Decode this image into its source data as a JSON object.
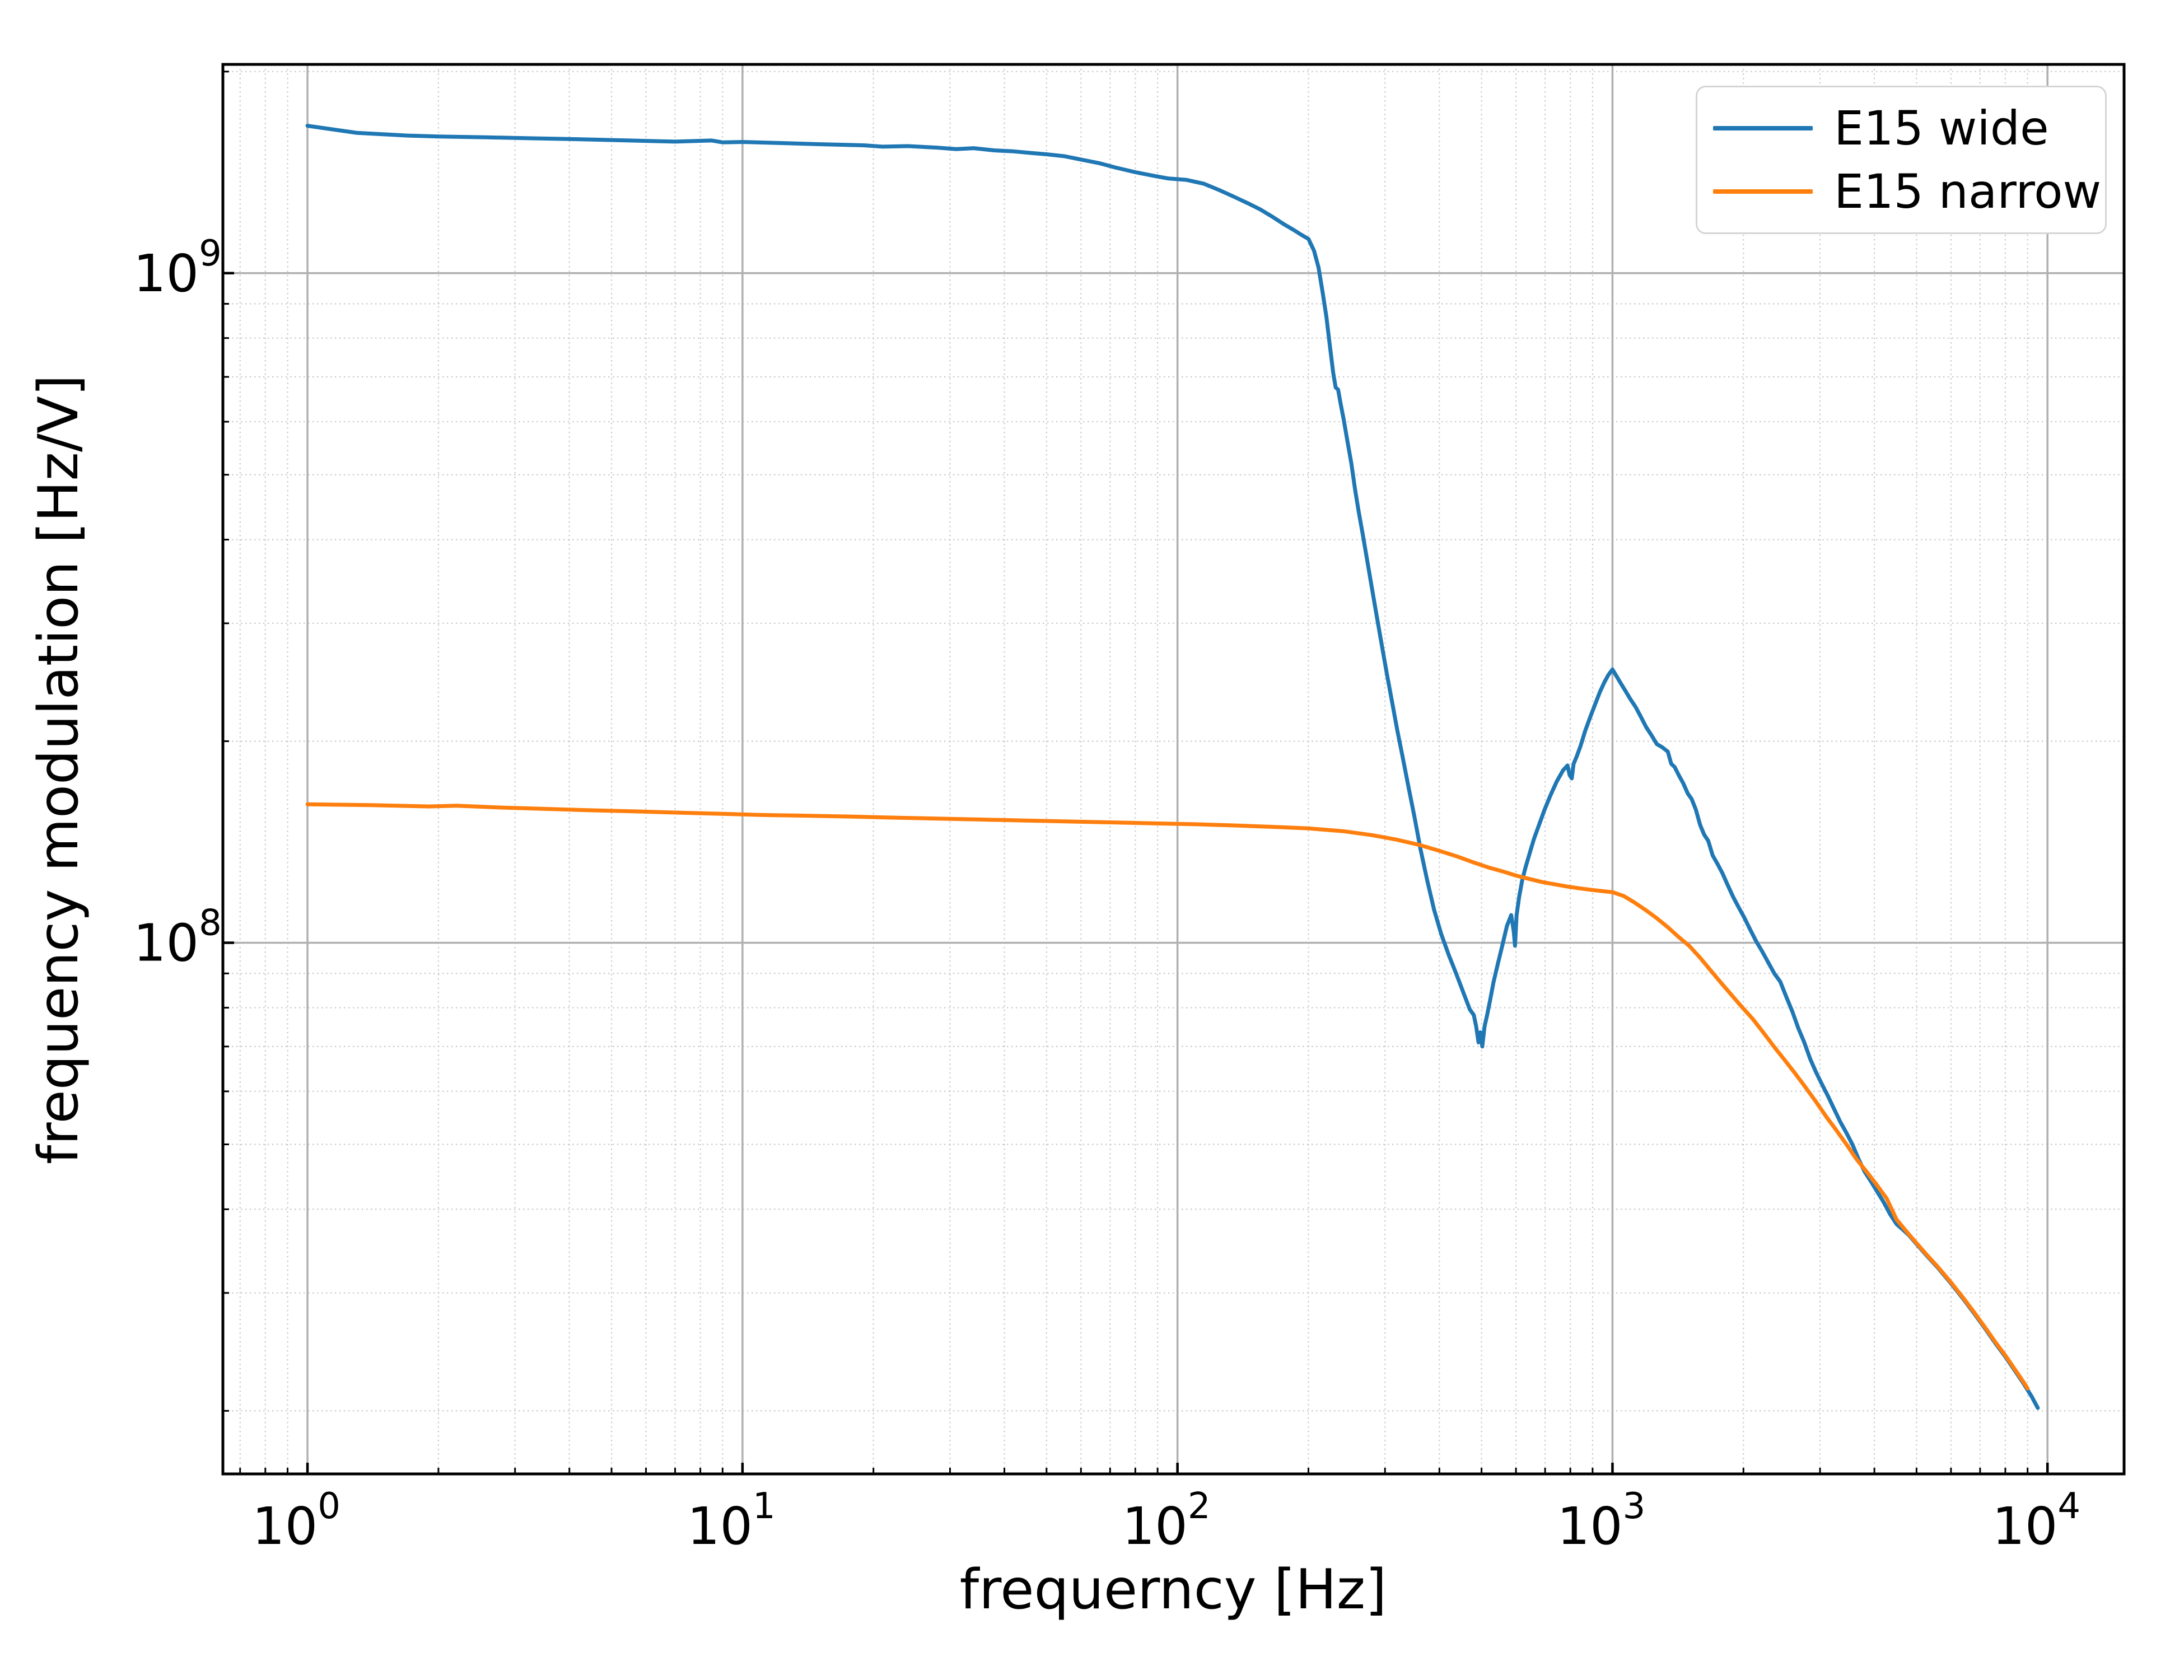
{
  "chart_data": {
    "type": "line",
    "title": "",
    "xlabel": "frequerncy [Hz]",
    "ylabel": "frequency modulation [Hz/V]",
    "x_scale": "log",
    "y_scale": "log",
    "xlim": [
      0.639,
      15000
    ],
    "ylim": [
      16100000,
      2050000000
    ],
    "x_tick_base": "10",
    "x_tick_exponents": [
      "0",
      "1",
      "2",
      "3",
      "4"
    ],
    "y_tick_base": "10",
    "y_tick_exponents": [
      "8",
      "9"
    ],
    "grid": {
      "major": "solid gray",
      "minor": "dotted light gray"
    },
    "legend_position": "upper right",
    "colors": {
      "major_grid": "#b0b0b0",
      "minor_grid": "#c9c9c9",
      "spine": "#000000"
    },
    "series": [
      {
        "name": "E15 wide",
        "color": "#1f77b4",
        "points": [
          [
            1,
            1660000000.0
          ],
          [
            1.3,
            1620000000.0
          ],
          [
            1.7,
            1605000000.0
          ],
          [
            2,
            1600000000.0
          ],
          [
            2.6,
            1595000000.0
          ],
          [
            3.3,
            1590000000.0
          ],
          [
            4.2,
            1585000000.0
          ],
          [
            5.5,
            1578000000.0
          ],
          [
            7,
            1572000000.0
          ],
          [
            8.5,
            1578000000.0
          ],
          [
            9,
            1568000000.0
          ],
          [
            10,
            1570000000.0
          ],
          [
            12,
            1565000000.0
          ],
          [
            15,
            1558000000.0
          ],
          [
            19,
            1552000000.0
          ],
          [
            21,
            1545000000.0
          ],
          [
            24,
            1548000000.0
          ],
          [
            28,
            1540000000.0
          ],
          [
            31,
            1532000000.0
          ],
          [
            34,
            1537000000.0
          ],
          [
            38,
            1525000000.0
          ],
          [
            42,
            1520000000.0
          ],
          [
            46,
            1512000000.0
          ],
          [
            50,
            1505000000.0
          ],
          [
            55,
            1495000000.0
          ],
          [
            60,
            1478000000.0
          ],
          [
            66,
            1460000000.0
          ],
          [
            72,
            1438000000.0
          ],
          [
            80,
            1415000000.0
          ],
          [
            88,
            1398000000.0
          ],
          [
            95,
            1385000000.0
          ],
          [
            105,
            1378000000.0
          ],
          [
            115,
            1360000000.0
          ],
          [
            125,
            1330000000.0
          ],
          [
            135,
            1300000000.0
          ],
          [
            145,
            1272000000.0
          ],
          [
            155,
            1245000000.0
          ],
          [
            165,
            1215000000.0
          ],
          [
            175,
            1185000000.0
          ],
          [
            185,
            1160000000.0
          ],
          [
            193,
            1140000000.0
          ],
          [
            200,
            1125000000.0
          ],
          [
            206,
            1080000000.0
          ],
          [
            211,
            1020000000.0
          ],
          [
            216,
            930000000.0
          ],
          [
            220,
            860000000.0
          ],
          [
            224,
            780000000.0
          ],
          [
            228,
            710000000.0
          ],
          [
            231,
            675000000.0
          ],
          [
            234,
            670000000.0
          ],
          [
            237,
            640000000.0
          ],
          [
            241,
            605000000.0
          ],
          [
            246,
            560000000.0
          ],
          [
            251,
            520000000.0
          ],
          [
            256,
            475000000.0
          ],
          [
            261,
            440000000.0
          ],
          [
            267,
            405000000.0
          ],
          [
            273,
            372000000.0
          ],
          [
            280,
            338000000.0
          ],
          [
            287,
            308000000.0
          ],
          [
            295,
            278000000.0
          ],
          [
            303,
            252000000.0
          ],
          [
            311,
            230000000.0
          ],
          [
            320,
            208000000.0
          ],
          [
            329,
            190000000.0
          ],
          [
            339,
            172000000.0
          ],
          [
            350,
            155000000.0
          ],
          [
            362,
            138000000.0
          ],
          [
            375,
            124000000.0
          ],
          [
            389,
            112000000.0
          ],
          [
            404,
            103000000.0
          ],
          [
            420,
            96000000.0
          ],
          [
            437,
            90000000.0
          ],
          [
            455,
            84000000.0
          ],
          [
            470,
            79500000.0
          ],
          [
            480,
            78000000.0
          ],
          [
            486,
            75000000.0
          ],
          [
            492,
            71000000.0
          ],
          [
            497,
            73500000.0
          ],
          [
            502,
            70000000.0
          ],
          [
            508,
            75000000.0
          ],
          [
            515,
            78000000.0
          ],
          [
            523,
            82000000.0
          ],
          [
            533,
            87500000.0
          ],
          [
            545,
            93000000.0
          ],
          [
            558,
            99000000.0
          ],
          [
            572,
            106000000.0
          ],
          [
            585,
            110000000.0
          ],
          [
            593,
            104000000.0
          ],
          [
            597,
            99000000.0
          ],
          [
            602,
            110000000.0
          ],
          [
            610,
            117000000.0
          ],
          [
            620,
            124000000.0
          ],
          [
            632,
            130000000.0
          ],
          [
            645,
            136000000.0
          ],
          [
            660,
            143000000.0
          ],
          [
            678,
            150000000.0
          ],
          [
            698,
            158000000.0
          ],
          [
            720,
            166000000.0
          ],
          [
            744,
            174000000.0
          ],
          [
            770,
            181000000.0
          ],
          [
            788,
            184000000.0
          ],
          [
            797,
            178000000.0
          ],
          [
            806,
            176000000.0
          ],
          [
            814,
            185000000.0
          ],
          [
            828,
            190000000.0
          ],
          [
            845,
            197000000.0
          ],
          [
            865,
            207000000.0
          ],
          [
            888,
            217000000.0
          ],
          [
            912,
            227000000.0
          ],
          [
            936,
            237000000.0
          ],
          [
            958,
            245000000.0
          ],
          [
            978,
            251000000.0
          ],
          [
            1000,
            256000000.0
          ],
          [
            1022,
            250000000.0
          ],
          [
            1045,
            244000000.0
          ],
          [
            1070,
            238000000.0
          ],
          [
            1100,
            231000000.0
          ],
          [
            1130,
            225000000.0
          ],
          [
            1160,
            218000000.0
          ],
          [
            1195,
            210000000.0
          ],
          [
            1230,
            204000000.0
          ],
          [
            1265,
            198000000.0
          ],
          [
            1300,
            196000000.0
          ],
          [
            1340,
            193000000.0
          ],
          [
            1365,
            185000000.0
          ],
          [
            1390,
            183000000.0
          ],
          [
            1420,
            178000000.0
          ],
          [
            1455,
            173000000.0
          ],
          [
            1490,
            167000000.0
          ],
          [
            1520,
            164000000.0
          ],
          [
            1555,
            158000000.0
          ],
          [
            1590,
            150000000.0
          ],
          [
            1625,
            145000000.0
          ],
          [
            1660,
            142000000.0
          ],
          [
            1700,
            135000000.0
          ],
          [
            1745,
            131000000.0
          ],
          [
            1790,
            127000000.0
          ],
          [
            1840,
            122000000.0
          ],
          [
            1895,
            117000000.0
          ],
          [
            1950,
            113000000.0
          ],
          [
            2010,
            109000000.0
          ],
          [
            2075,
            104500000.0
          ],
          [
            2140,
            100500000.0
          ],
          [
            2210,
            97000000.0
          ],
          [
            2280,
            93500000.0
          ],
          [
            2355,
            90000000.0
          ],
          [
            2430,
            87500000.0
          ],
          [
            2510,
            83000000.0
          ],
          [
            2590,
            79000000.0
          ],
          [
            2675,
            74500000.0
          ],
          [
            2760,
            71000000.0
          ],
          [
            2850,
            67000000.0
          ],
          [
            2940,
            64000000.0
          ],
          [
            3030,
            61500000.0
          ],
          [
            3130,
            59000000.0
          ],
          [
            3230,
            56500000.0
          ],
          [
            3340,
            54000000.0
          ],
          [
            3450,
            52000000.0
          ],
          [
            3560,
            50000000.0
          ],
          [
            3680,
            47500000.0
          ],
          [
            3800,
            45500000.0
          ],
          [
            3930,
            44000000.0
          ],
          [
            4060,
            42500000.0
          ],
          [
            4200,
            41000000.0
          ],
          [
            4350,
            39300000.0
          ],
          [
            4500,
            38000000.0
          ],
          [
            4650,
            37300000.0
          ],
          [
            4800,
            36600000.0
          ],
          [
            5000,
            35500000.0
          ],
          [
            5300,
            34000000.0
          ],
          [
            5600,
            32700000.0
          ],
          [
            6000,
            31000000.0
          ],
          [
            6400,
            29400000.0
          ],
          [
            6800,
            27900000.0
          ],
          [
            7200,
            26500000.0
          ],
          [
            7600,
            25200000.0
          ],
          [
            8000,
            24100000.0
          ],
          [
            8400,
            23000000.0
          ],
          [
            8800,
            22000000.0
          ],
          [
            9200,
            21000000.0
          ],
          [
            9500,
            20200000.0
          ]
        ]
      },
      {
        "name": "E15 narrow",
        "color": "#ff7f0e",
        "points": [
          [
            1,
            161000000.0
          ],
          [
            1.4,
            160500000.0
          ],
          [
            1.9,
            159800000.0
          ],
          [
            2.2,
            160200000.0
          ],
          [
            2.8,
            159200000.0
          ],
          [
            3.5,
            158500000.0
          ],
          [
            4.4,
            157800000.0
          ],
          [
            5.5,
            157200000.0
          ],
          [
            7,
            156500000.0
          ],
          [
            9,
            155800000.0
          ],
          [
            11,
            155200000.0
          ],
          [
            14,
            154800000.0
          ],
          [
            18,
            154300000.0
          ],
          [
            22,
            153800000.0
          ],
          [
            28,
            153300000.0
          ],
          [
            35,
            152800000.0
          ],
          [
            44,
            152300000.0
          ],
          [
            55,
            151800000.0
          ],
          [
            70,
            151300000.0
          ],
          [
            88,
            150800000.0
          ],
          [
            110,
            150300000.0
          ],
          [
            135,
            149700000.0
          ],
          [
            165,
            149000000.0
          ],
          [
            200,
            148200000.0
          ],
          [
            240,
            146800000.0
          ],
          [
            280,
            144800000.0
          ],
          [
            320,
            142500000.0
          ],
          [
            360,
            140000000.0
          ],
          [
            400,
            137200000.0
          ],
          [
            440,
            134500000.0
          ],
          [
            480,
            131800000.0
          ],
          [
            520,
            129500000.0
          ],
          [
            560,
            127800000.0
          ],
          [
            600,
            126000000.0
          ],
          [
            645,
            124500000.0
          ],
          [
            690,
            123200000.0
          ],
          [
            740,
            122200000.0
          ],
          [
            790,
            121300000.0
          ],
          [
            840,
            120600000.0
          ],
          [
            890,
            120000000.0
          ],
          [
            940,
            119500000.0
          ],
          [
            1000,
            119000000.0
          ],
          [
            1060,
            117500000.0
          ],
          [
            1120,
            115000000.0
          ],
          [
            1190,
            112000000.0
          ],
          [
            1260,
            109000000.0
          ],
          [
            1340,
            105500000.0
          ],
          [
            1420,
            102000000.0
          ],
          [
            1500,
            99000000.0
          ],
          [
            1590,
            95000000.0
          ],
          [
            1680,
            91000000.0
          ],
          [
            1780,
            87000000.0
          ],
          [
            1880,
            83500000.0
          ],
          [
            1990,
            80000000.0
          ],
          [
            2100,
            77000000.0
          ],
          [
            2220,
            73500000.0
          ],
          [
            2350,
            70000000.0
          ],
          [
            2480,
            67000000.0
          ],
          [
            2620,
            64000000.0
          ],
          [
            2770,
            61000000.0
          ],
          [
            2930,
            58000000.0
          ],
          [
            3100,
            55000000.0
          ],
          [
            3270,
            52500000.0
          ],
          [
            3450,
            50000000.0
          ],
          [
            3640,
            47500000.0
          ],
          [
            3840,
            45500000.0
          ],
          [
            4050,
            43500000.0
          ],
          [
            4270,
            41500000.0
          ],
          [
            4500,
            38600000.0
          ],
          [
            4800,
            36700000.0
          ],
          [
            5000,
            35600000.0
          ],
          [
            5300,
            34100000.0
          ],
          [
            5600,
            32800000.0
          ],
          [
            6000,
            31100000.0
          ],
          [
            6400,
            29500000.0
          ],
          [
            6800,
            28000000.0
          ],
          [
            7200,
            26600000.0
          ],
          [
            7600,
            25300000.0
          ],
          [
            8000,
            24200000.0
          ],
          [
            8400,
            23100000.0
          ],
          [
            8800,
            22100000.0
          ],
          [
            9000,
            21600000.0
          ]
        ]
      }
    ]
  },
  "legend": {
    "entries": [
      {
        "label": "E15 wide"
      },
      {
        "label": "E15 narrow"
      }
    ]
  }
}
